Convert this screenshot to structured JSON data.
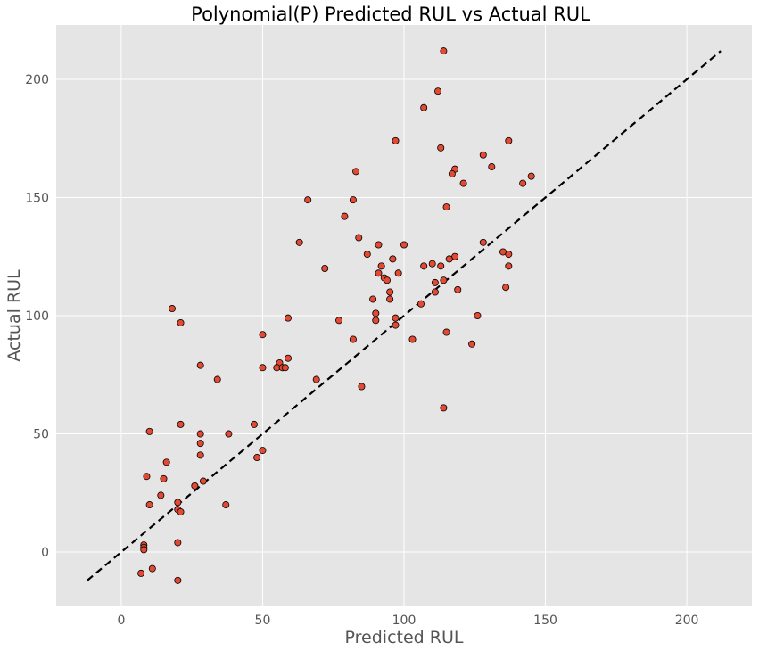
{
  "chart_data": {
    "type": "scatter",
    "title": "Polynomial(P) Predicted RUL vs Actual RUL",
    "xlabel": "Predicted RUL",
    "ylabel": "Actual RUL",
    "xlim": [
      -23,
      223
    ],
    "ylim": [
      -23,
      223
    ],
    "xticks": [
      0,
      50,
      100,
      150,
      200
    ],
    "yticks": [
      0,
      50,
      100,
      150,
      200
    ],
    "grid": true,
    "style": {
      "background": "#E5E5E5",
      "grid_color": "#FFFFFF",
      "point_fill": "#E24A33",
      "point_edge": "#000000",
      "line_color": "#000000",
      "tick_label_color": "#555555",
      "label_color": "#555555",
      "title_color": "#000000"
    },
    "reference_line": {
      "style": "dashed",
      "x": [
        -12,
        212
      ],
      "y": [
        -12,
        212
      ]
    },
    "series": [
      {
        "points": [
          [
            114,
            212
          ],
          [
            112,
            195
          ],
          [
            107,
            188
          ],
          [
            97,
            174
          ],
          [
            137,
            174
          ],
          [
            113,
            171
          ],
          [
            128,
            168
          ],
          [
            131,
            163
          ],
          [
            118,
            162
          ],
          [
            117,
            160
          ],
          [
            145,
            159
          ],
          [
            142,
            156
          ],
          [
            121,
            156
          ],
          [
            83,
            161
          ],
          [
            82,
            149
          ],
          [
            66,
            149
          ],
          [
            115,
            146
          ],
          [
            79,
            142
          ],
          [
            84,
            133
          ],
          [
            63,
            131
          ],
          [
            100,
            130
          ],
          [
            91,
            130
          ],
          [
            128,
            131
          ],
          [
            135,
            127
          ],
          [
            137,
            126
          ],
          [
            87,
            126
          ],
          [
            118,
            125
          ],
          [
            116,
            124
          ],
          [
            96,
            124
          ],
          [
            110,
            122
          ],
          [
            107,
            121
          ],
          [
            113,
            121
          ],
          [
            92,
            121
          ],
          [
            137,
            121
          ],
          [
            72,
            120
          ],
          [
            98,
            118
          ],
          [
            91,
            118
          ],
          [
            93,
            116
          ],
          [
            94,
            115
          ],
          [
            114,
            115
          ],
          [
            111,
            114
          ],
          [
            136,
            112
          ],
          [
            119,
            111
          ],
          [
            111,
            110
          ],
          [
            95,
            110
          ],
          [
            95,
            107
          ],
          [
            89,
            107
          ],
          [
            106,
            105
          ],
          [
            126,
            100
          ],
          [
            90,
            101
          ],
          [
            59,
            99
          ],
          [
            97,
            99
          ],
          [
            77,
            98
          ],
          [
            90,
            98
          ],
          [
            97,
            96
          ],
          [
            18,
            103
          ],
          [
            21,
            97
          ],
          [
            115,
            93
          ],
          [
            50,
            92
          ],
          [
            82,
            90
          ],
          [
            103,
            90
          ],
          [
            124,
            88
          ],
          [
            59,
            82
          ],
          [
            56,
            80
          ],
          [
            28,
            79
          ],
          [
            50,
            78
          ],
          [
            55,
            78
          ],
          [
            57,
            78
          ],
          [
            58,
            78
          ],
          [
            34,
            73
          ],
          [
            69,
            73
          ],
          [
            85,
            70
          ],
          [
            114,
            61
          ],
          [
            47,
            54
          ],
          [
            21,
            54
          ],
          [
            10,
            51
          ],
          [
            28,
            50
          ],
          [
            38,
            50
          ],
          [
            28,
            46
          ],
          [
            50,
            43
          ],
          [
            28,
            41
          ],
          [
            48,
            40
          ],
          [
            16,
            38
          ],
          [
            9,
            32
          ],
          [
            15,
            31
          ],
          [
            29,
            30
          ],
          [
            26,
            28
          ],
          [
            14,
            24
          ],
          [
            20,
            21
          ],
          [
            10,
            20
          ],
          [
            37,
            20
          ],
          [
            20,
            18
          ],
          [
            21,
            17
          ],
          [
            20,
            4
          ],
          [
            8,
            3
          ],
          [
            8,
            2
          ],
          [
            8,
            1
          ],
          [
            11,
            -7
          ],
          [
            7,
            -9
          ],
          [
            20,
            -12
          ]
        ]
      }
    ]
  }
}
